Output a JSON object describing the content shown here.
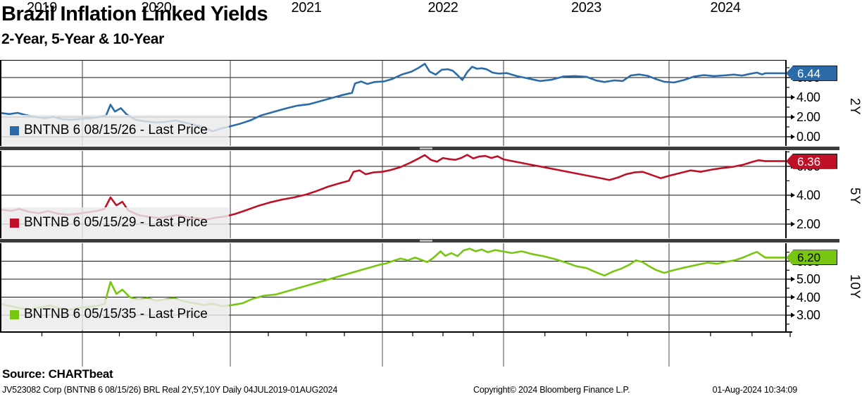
{
  "header": {
    "title": "Brazil Inflation Linked Yields",
    "subtitle": "2-Year, 5-Year & 10-Year"
  },
  "source_text": "Source: CHARTbeat",
  "footer": {
    "left": "JV523082 Corp (BNTNB 6 08/15/26) BRL Real 2Y,5Y,10Y  Daily 04JUL2019-01AUG2024",
    "center": "Copyright© 2024 Bloomberg Finance L.P.",
    "right": "01-Aug-2024 10:34:09"
  },
  "chart_data": {
    "type": "line",
    "title": "Brazil Inflation Linked Yields",
    "subtitle": "2-Year, 5-Year & 10-Year",
    "x_axis": {
      "year_labels": [
        "2019",
        "2020",
        "2021",
        "2022",
        "2023",
        "2024"
      ],
      "xlim": [
        2019.5,
        2024.7
      ],
      "date_range": "04JUL2019-01AUG2024",
      "year_gridlines": [
        2020,
        2021,
        2022,
        2023,
        2024
      ],
      "grid": true
    },
    "panels": [
      {
        "id": "p2y",
        "axis_label": "2Y",
        "legend": "BNTNB 6 08/15/26 - Last Price",
        "last_price": "6.44",
        "last_value": 6.44,
        "color": "#2B6CA8",
        "badge_color": "#2B6CA8",
        "badge_text_color": "#FFFFFF",
        "ylim": [
          -0.93,
          7.79
        ],
        "yticks": [
          {
            "v": 0,
            "label": "0.00"
          },
          {
            "v": 2,
            "label": "2.00"
          },
          {
            "v": 4,
            "label": "4.00"
          },
          {
            "v": 6,
            "label": "6.00"
          }
        ],
        "grid_v": [
          0,
          2,
          4,
          6
        ],
        "minor_v": [
          1,
          3,
          5,
          7
        ],
        "series": [
          [
            2019.5,
            2.4
          ],
          [
            2019.55,
            2.3
          ],
          [
            2019.6,
            2.42
          ],
          [
            2019.65,
            2.2
          ],
          [
            2019.71,
            2.0
          ],
          [
            2019.77,
            1.88
          ],
          [
            2019.82,
            2.02
          ],
          [
            2019.87,
            1.8
          ],
          [
            2019.93,
            1.72
          ],
          [
            2019.98,
            1.8
          ],
          [
            2020.05,
            1.88
          ],
          [
            2020.11,
            1.98
          ],
          [
            2020.16,
            2.15
          ],
          [
            2020.19,
            3.25
          ],
          [
            2020.22,
            2.55
          ],
          [
            2020.26,
            2.9
          ],
          [
            2020.3,
            2.25
          ],
          [
            2020.36,
            1.72
          ],
          [
            2020.43,
            1.55
          ],
          [
            2020.5,
            1.45
          ],
          [
            2020.57,
            1.52
          ],
          [
            2020.63,
            1.65
          ],
          [
            2020.7,
            1.42
          ],
          [
            2020.77,
            1.15
          ],
          [
            2020.83,
            0.9
          ],
          [
            2020.88,
            0.55
          ],
          [
            2020.93,
            0.8
          ],
          [
            2020.99,
            1.02
          ],
          [
            2021.06,
            1.3
          ],
          [
            2021.13,
            1.65
          ],
          [
            2021.2,
            2.15
          ],
          [
            2021.28,
            2.5
          ],
          [
            2021.36,
            2.85
          ],
          [
            2021.44,
            3.15
          ],
          [
            2021.52,
            3.3
          ],
          [
            2021.59,
            3.6
          ],
          [
            2021.66,
            3.9
          ],
          [
            2021.73,
            4.2
          ],
          [
            2021.8,
            4.45
          ],
          [
            2021.82,
            5.4
          ],
          [
            2021.86,
            5.6
          ],
          [
            2021.9,
            5.35
          ],
          [
            2021.95,
            5.55
          ],
          [
            2022.01,
            5.6
          ],
          [
            2022.08,
            5.85
          ],
          [
            2022.16,
            6.3
          ],
          [
            2022.24,
            6.6
          ],
          [
            2022.3,
            7.0
          ],
          [
            2022.35,
            7.4
          ],
          [
            2022.39,
            6.6
          ],
          [
            2022.44,
            6.3
          ],
          [
            2022.49,
            6.8
          ],
          [
            2022.54,
            6.85
          ],
          [
            2022.58,
            6.7
          ],
          [
            2022.62,
            6.25
          ],
          [
            2022.66,
            5.75
          ],
          [
            2022.7,
            6.55
          ],
          [
            2022.74,
            7.1
          ],
          [
            2022.78,
            6.9
          ],
          [
            2022.82,
            6.95
          ],
          [
            2022.86,
            6.85
          ],
          [
            2022.91,
            6.5
          ],
          [
            2022.96,
            6.4
          ],
          [
            2023.02,
            6.45
          ],
          [
            2023.08,
            6.15
          ],
          [
            2023.15,
            5.9
          ],
          [
            2023.22,
            5.65
          ],
          [
            2023.29,
            5.78
          ],
          [
            2023.36,
            6.1
          ],
          [
            2023.43,
            6.15
          ],
          [
            2023.5,
            6.08
          ],
          [
            2023.56,
            5.7
          ],
          [
            2023.61,
            5.55
          ],
          [
            2023.67,
            5.72
          ],
          [
            2023.72,
            5.65
          ],
          [
            2023.77,
            6.22
          ],
          [
            2023.82,
            6.32
          ],
          [
            2023.87,
            6.18
          ],
          [
            2023.92,
            5.85
          ],
          [
            2023.97,
            5.58
          ],
          [
            2024.03,
            5.5
          ],
          [
            2024.09,
            5.75
          ],
          [
            2024.15,
            6.1
          ],
          [
            2024.21,
            6.25
          ],
          [
            2024.27,
            6.15
          ],
          [
            2024.33,
            6.22
          ],
          [
            2024.39,
            6.3
          ],
          [
            2024.44,
            6.2
          ],
          [
            2024.49,
            6.38
          ],
          [
            2024.53,
            6.5
          ],
          [
            2024.56,
            6.32
          ],
          [
            2024.58,
            6.44
          ]
        ]
      },
      {
        "id": "p5y",
        "axis_label": "5Y",
        "legend": "BNTNB 6 05/15/29 - Last Price",
        "last_price": "6.36",
        "last_value": 6.36,
        "color": "#BE1128",
        "badge_color": "#BE1128",
        "badge_text_color": "#FFFFFF",
        "ylim": [
          1.02,
          7.12
        ],
        "yticks": [
          {
            "v": 2,
            "label": "2.00"
          },
          {
            "v": 4,
            "label": "4.00"
          },
          {
            "v": 6,
            "label": "6.00"
          }
        ],
        "grid_v": [
          2,
          4,
          6
        ],
        "minor_v": [
          3,
          5,
          7
        ],
        "series": [
          [
            2019.5,
            3.0
          ],
          [
            2019.56,
            2.92
          ],
          [
            2019.61,
            3.05
          ],
          [
            2019.67,
            2.85
          ],
          [
            2019.73,
            2.75
          ],
          [
            2019.79,
            2.9
          ],
          [
            2019.85,
            2.72
          ],
          [
            2019.91,
            2.65
          ],
          [
            2019.97,
            2.72
          ],
          [
            2020.04,
            2.82
          ],
          [
            2020.1,
            2.92
          ],
          [
            2020.15,
            3.05
          ],
          [
            2020.19,
            3.85
          ],
          [
            2020.23,
            3.3
          ],
          [
            2020.27,
            3.55
          ],
          [
            2020.31,
            2.95
          ],
          [
            2020.38,
            2.62
          ],
          [
            2020.45,
            2.5
          ],
          [
            2020.52,
            2.42
          ],
          [
            2020.58,
            2.52
          ],
          [
            2020.64,
            2.62
          ],
          [
            2020.71,
            2.48
          ],
          [
            2020.78,
            2.4
          ],
          [
            2020.84,
            2.32
          ],
          [
            2020.9,
            2.45
          ],
          [
            2020.96,
            2.52
          ],
          [
            2021.03,
            2.7
          ],
          [
            2021.1,
            2.95
          ],
          [
            2021.18,
            3.25
          ],
          [
            2021.26,
            3.5
          ],
          [
            2021.34,
            3.7
          ],
          [
            2021.42,
            3.85
          ],
          [
            2021.5,
            4.05
          ],
          [
            2021.57,
            4.3
          ],
          [
            2021.64,
            4.58
          ],
          [
            2021.71,
            4.8
          ],
          [
            2021.78,
            5.0
          ],
          [
            2021.81,
            5.62
          ],
          [
            2021.85,
            5.72
          ],
          [
            2021.89,
            5.45
          ],
          [
            2021.94,
            5.58
          ],
          [
            2022.0,
            5.62
          ],
          [
            2022.07,
            5.75
          ],
          [
            2022.15,
            5.95
          ],
          [
            2022.23,
            6.25
          ],
          [
            2022.3,
            6.55
          ],
          [
            2022.35,
            6.78
          ],
          [
            2022.4,
            6.45
          ],
          [
            2022.45,
            6.32
          ],
          [
            2022.5,
            6.58
          ],
          [
            2022.55,
            6.5
          ],
          [
            2022.6,
            6.45
          ],
          [
            2022.65,
            6.58
          ],
          [
            2022.7,
            6.8
          ],
          [
            2022.75,
            6.55
          ],
          [
            2022.8,
            6.68
          ],
          [
            2022.85,
            6.72
          ],
          [
            2022.9,
            6.58
          ],
          [
            2022.95,
            6.7
          ],
          [
            2023.0,
            6.48
          ],
          [
            2023.6,
            5.15
          ],
          [
            2023.64,
            5.05
          ],
          [
            2023.69,
            5.22
          ],
          [
            2023.74,
            5.45
          ],
          [
            2023.79,
            5.58
          ],
          [
            2023.84,
            5.62
          ],
          [
            2023.89,
            5.42
          ],
          [
            2023.95,
            5.18
          ],
          [
            2024.01,
            5.38
          ],
          [
            2024.07,
            5.55
          ],
          [
            2024.13,
            5.72
          ],
          [
            2024.19,
            5.62
          ],
          [
            2024.26,
            5.78
          ],
          [
            2024.32,
            5.88
          ],
          [
            2024.39,
            5.98
          ],
          [
            2024.45,
            6.12
          ],
          [
            2024.5,
            6.3
          ],
          [
            2024.54,
            6.42
          ],
          [
            2024.58,
            6.36
          ]
        ]
      },
      {
        "id": "p10y",
        "axis_label": "10Y",
        "legend": "BNTNB 6 05/15/35 - Last Price",
        "last_price": "6.20",
        "last_value": 6.2,
        "color": "#79C612",
        "badge_color": "#79C612",
        "badge_text_color": "#000000",
        "ylim": [
          2.1,
          7.04
        ],
        "yticks": [
          {
            "v": 3,
            "label": "3.00"
          },
          {
            "v": 4,
            "label": "4.00"
          },
          {
            "v": 5,
            "label": "5.00"
          },
          {
            "v": 6,
            "label": "6.00"
          }
        ],
        "grid_v": [
          3,
          4,
          5,
          6
        ],
        "minor_v": [
          2.5,
          3.5,
          4.5,
          5.5,
          6.5
        ],
        "series": [
          [
            2019.5,
            3.62
          ],
          [
            2019.56,
            3.5
          ],
          [
            2019.62,
            3.38
          ],
          [
            2019.68,
            3.3
          ],
          [
            2019.74,
            3.44
          ],
          [
            2019.8,
            3.54
          ],
          [
            2019.86,
            3.38
          ],
          [
            2019.92,
            3.3
          ],
          [
            2019.98,
            3.4
          ],
          [
            2020.05,
            3.46
          ],
          [
            2020.11,
            3.54
          ],
          [
            2020.15,
            3.62
          ],
          [
            2020.19,
            4.85
          ],
          [
            2020.23,
            4.18
          ],
          [
            2020.27,
            4.42
          ],
          [
            2020.32,
            4.0
          ],
          [
            2020.38,
            3.86
          ],
          [
            2020.44,
            3.96
          ],
          [
            2020.5,
            3.8
          ],
          [
            2020.56,
            3.88
          ],
          [
            2020.62,
            3.95
          ],
          [
            2020.69,
            3.76
          ],
          [
            2020.76,
            3.66
          ],
          [
            2020.82,
            3.56
          ],
          [
            2020.88,
            3.64
          ],
          [
            2020.94,
            3.5
          ],
          [
            2021.01,
            3.56
          ],
          [
            2021.08,
            3.66
          ],
          [
            2021.15,
            3.92
          ],
          [
            2021.22,
            4.08
          ],
          [
            2021.3,
            4.15
          ],
          [
            2021.98,
            5.8
          ],
          [
            2022.03,
            5.88
          ],
          [
            2022.09,
            6.02
          ],
          [
            2022.15,
            6.15
          ],
          [
            2022.21,
            6.05
          ],
          [
            2022.27,
            6.2
          ],
          [
            2022.32,
            6.08
          ],
          [
            2022.37,
            5.95
          ],
          [
            2022.42,
            6.18
          ],
          [
            2022.48,
            6.55
          ],
          [
            2022.52,
            6.3
          ],
          [
            2022.57,
            6.45
          ],
          [
            2022.62,
            6.28
          ],
          [
            2022.67,
            6.6
          ],
          [
            2022.72,
            6.7
          ],
          [
            2022.77,
            6.55
          ],
          [
            2022.82,
            6.65
          ],
          [
            2022.87,
            6.5
          ],
          [
            2022.93,
            6.62
          ],
          [
            2022.99,
            6.55
          ],
          [
            2023.05,
            6.45
          ],
          [
            2023.11,
            6.55
          ],
          [
            2023.17,
            6.4
          ],
          [
            2023.24,
            6.28
          ],
          [
            2023.31,
            6.12
          ],
          [
            2023.38,
            5.92
          ],
          [
            2023.44,
            5.72
          ],
          [
            2023.5,
            5.62
          ],
          [
            2023.56,
            5.38
          ],
          [
            2023.61,
            5.2
          ],
          [
            2023.66,
            5.42
          ],
          [
            2023.71,
            5.58
          ],
          [
            2023.76,
            5.8
          ],
          [
            2023.8,
            6.05
          ],
          [
            2023.84,
            5.95
          ],
          [
            2023.88,
            5.72
          ],
          [
            2023.92,
            5.52
          ],
          [
            2023.97,
            5.35
          ],
          [
            2024.02,
            5.48
          ],
          [
            2024.08,
            5.62
          ],
          [
            2024.13,
            5.72
          ],
          [
            2024.18,
            5.82
          ],
          [
            2024.23,
            5.92
          ],
          [
            2024.29,
            5.86
          ],
          [
            2024.34,
            5.96
          ],
          [
            2024.4,
            6.06
          ],
          [
            2024.45,
            6.22
          ],
          [
            2024.5,
            6.42
          ],
          [
            2024.53,
            6.52
          ],
          [
            2024.56,
            6.32
          ],
          [
            2024.58,
            6.2
          ]
        ]
      }
    ]
  }
}
